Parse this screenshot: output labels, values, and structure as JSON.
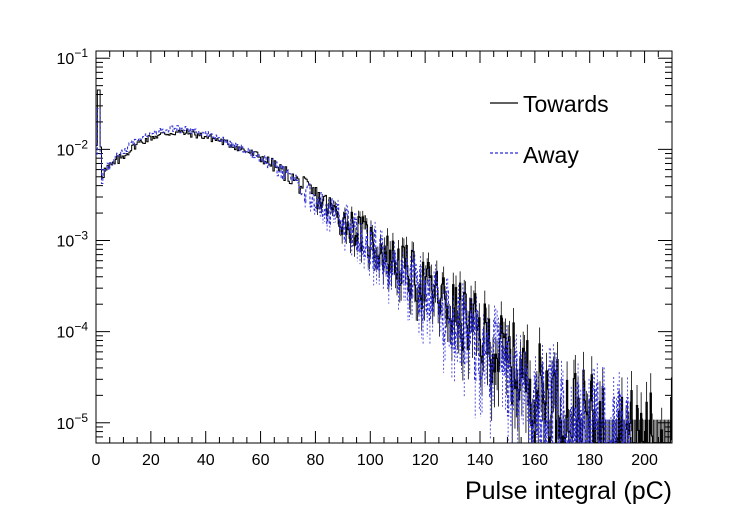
{
  "chart_data": {
    "type": "line",
    "title": "",
    "xlabel": "Pulse integral (pC)",
    "ylabel": "",
    "xlim": [
      0,
      210
    ],
    "ylim": [
      6e-06,
      0.12
    ],
    "yscale": "log",
    "x_ticks": [
      "0",
      "20",
      "40",
      "60",
      "80",
      "100",
      "120",
      "140",
      "160",
      "180",
      "200"
    ],
    "y_ticks": [
      {
        "base": "10",
        "exp": "−1"
      },
      {
        "base": "10",
        "exp": "−2"
      },
      {
        "base": "10",
        "exp": "−3"
      },
      {
        "base": "10",
        "exp": "−4"
      },
      {
        "base": "10",
        "exp": "−5"
      }
    ],
    "y_tick_values": [
      0.1,
      0.01,
      0.001,
      0.0001,
      1e-05
    ],
    "legend": {
      "placement": "top-right"
    },
    "series": [
      {
        "name": "Towards",
        "color": "#000000",
        "style": "solid",
        "x": [
          0,
          1,
          2,
          5,
          10,
          15,
          20,
          25,
          30,
          35,
          40,
          45,
          50,
          55,
          60,
          65,
          70,
          75,
          80,
          85,
          90,
          95,
          100,
          105,
          110,
          115,
          120,
          125,
          130,
          135,
          140,
          145,
          150,
          155,
          160,
          165,
          170,
          175,
          180,
          185,
          190,
          195,
          200,
          205,
          210
        ],
        "values": [
          0.0055,
          0.09,
          0.0055,
          0.0062,
          0.0085,
          0.0115,
          0.0135,
          0.0148,
          0.0155,
          0.0148,
          0.0138,
          0.0125,
          0.011,
          0.0095,
          0.0082,
          0.0066,
          0.0052,
          0.004,
          0.0031,
          0.0023,
          0.0017,
          0.0013,
          0.00098,
          0.00075,
          0.00057,
          0.00042,
          0.00032,
          0.00024,
          0.00017,
          0.00013,
          9.5e-05,
          7e-05,
          5e-05,
          3.6e-05,
          2.7e-05,
          2e-05,
          1.5e-05,
          1.2e-05,
          1e-05,
          8.5e-06,
          7.5e-06,
          7e-06,
          6.8e-06,
          6.6e-06,
          6.5e-06
        ]
      },
      {
        "name": "Away",
        "color": "#2b2bd6",
        "style": "dashed",
        "x": [
          0,
          1,
          2,
          5,
          10,
          15,
          20,
          25,
          30,
          35,
          40,
          45,
          50,
          55,
          60,
          65,
          70,
          75,
          80,
          85,
          90,
          95,
          100,
          105,
          110,
          115,
          120,
          125,
          130,
          135,
          140,
          145,
          150,
          155,
          160,
          165,
          170,
          175,
          180,
          185,
          190,
          195
        ],
        "values": [
          0.005,
          0.05,
          0.005,
          0.0065,
          0.0095,
          0.013,
          0.0155,
          0.0168,
          0.0168,
          0.016,
          0.0148,
          0.0132,
          0.0113,
          0.0096,
          0.0081,
          0.0064,
          0.0049,
          0.0037,
          0.0028,
          0.0021,
          0.00155,
          0.00115,
          0.00086,
          0.00064,
          0.00047,
          0.00035,
          0.00025,
          0.00018,
          0.00013,
          9.3e-05,
          6.6e-05,
          4.7e-05,
          3.4e-05,
          2.5e-05,
          1.9e-05,
          1.5e-05,
          1.2e-05,
          1e-05,
          8.5e-06,
          7.5e-06,
          7e-06,
          6.8e-06
        ]
      }
    ]
  }
}
